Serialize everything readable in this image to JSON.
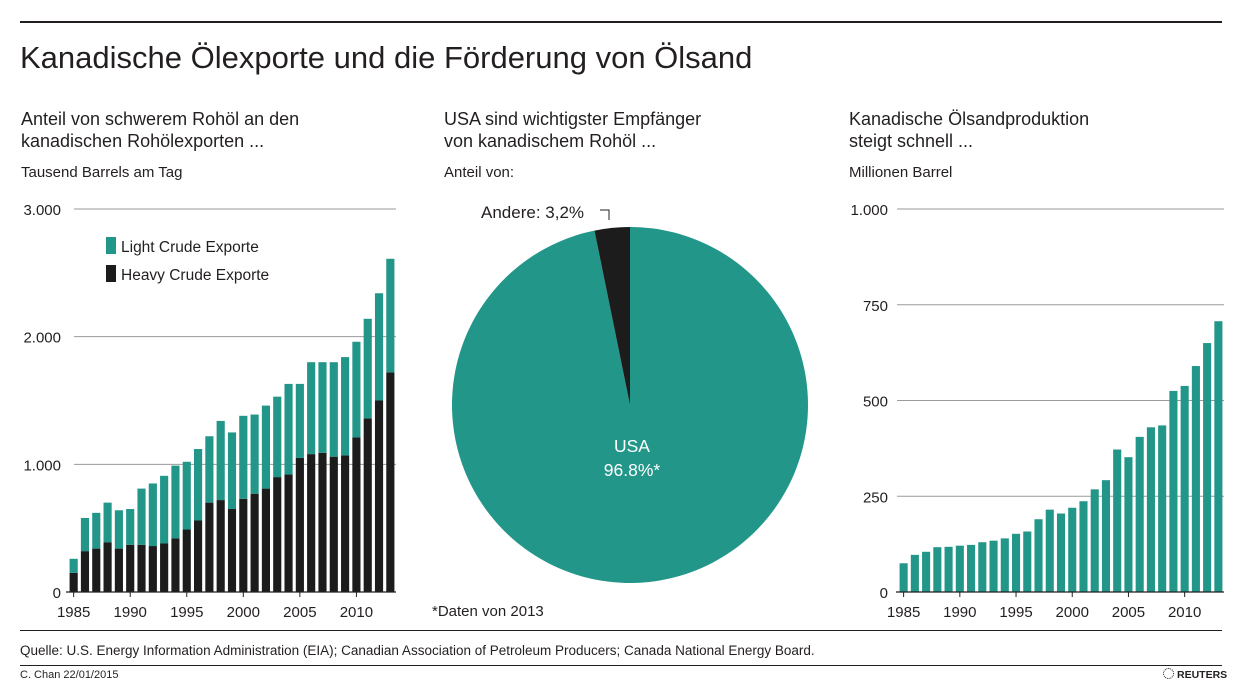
{
  "title": "Kanadische Ölexporte und die Förderung von Ölsand",
  "colors": {
    "teal": "#23968a",
    "dark": "#1c1c1c",
    "grid": "#9a9a9a",
    "text": "#231f20"
  },
  "panels": {
    "left": {
      "title_line1": "Anteil von schwerem Rohöl an den",
      "title_line2": "kanadischen Rohölexporten ...",
      "unit": "Tausend Barrels am Tag"
    },
    "middle": {
      "title_line1": "USA sind wichtigster Empfänger",
      "title_line2": "von kanadischem Rohöl ...",
      "unit": "Anteil von:",
      "note": "*Daten von 2013"
    },
    "right": {
      "title_line1": "Kanadische Ölsandproduktion",
      "title_line2": "steigt schnell ...",
      "unit": "Millionen Barrel"
    }
  },
  "chart_data": [
    {
      "type": "bar",
      "stacked": true,
      "title": "Anteil von schwerem Rohöl an den kanadischen Rohölexporten ...",
      "ylabel": "Tausend Barrels am Tag",
      "ylim": [
        0,
        3000
      ],
      "yticks": [
        0,
        1000,
        2000,
        3000
      ],
      "ytick_labels": [
        "0",
        "1.000",
        "2.000",
        "3.000"
      ],
      "xticks": [
        "1985",
        "1990",
        "1995",
        "2000",
        "2005",
        "2010"
      ],
      "x": [
        1985,
        1986,
        1987,
        1988,
        1989,
        1990,
        1991,
        1992,
        1993,
        1994,
        1995,
        1996,
        1997,
        1998,
        1999,
        2000,
        2001,
        2002,
        2003,
        2004,
        2005,
        2006,
        2007,
        2008,
        2009,
        2010,
        2011,
        2012,
        2013
      ],
      "series": [
        {
          "name": "Heavy Crude Exporte",
          "color": "#1c1c1c",
          "values": [
            150,
            320,
            340,
            390,
            340,
            370,
            370,
            360,
            380,
            420,
            490,
            560,
            700,
            720,
            650,
            730,
            770,
            810,
            900,
            920,
            1050,
            1080,
            1090,
            1060,
            1070,
            1210,
            1360,
            1500,
            1720
          ]
        },
        {
          "name": "Light Crude Exporte",
          "color": "#23968a",
          "values": [
            110,
            260,
            280,
            310,
            300,
            280,
            440,
            490,
            530,
            570,
            530,
            560,
            520,
            620,
            600,
            650,
            620,
            650,
            630,
            710,
            580,
            720,
            710,
            740,
            770,
            750,
            780,
            840,
            890
          ]
        }
      ],
      "legend": [
        "Light Crude Exporte",
        "Heavy Crude Exporte"
      ],
      "legend_position": "top-left"
    },
    {
      "type": "pie",
      "title": "USA sind wichtigster Empfänger von kanadischem Rohöl ...",
      "subtitle": "Anteil von:",
      "slices": [
        {
          "label": "USA",
          "value": 96.8,
          "value_label": "96.8%*",
          "color": "#23968a"
        },
        {
          "label": "Andere: 3,2%",
          "value": 3.2,
          "color": "#1c1c1c"
        }
      ],
      "note": "*Daten von 2013"
    },
    {
      "type": "bar",
      "title": "Kanadische Ölsandproduktion steigt schnell ...",
      "ylabel": "Millionen Barrel",
      "ylim": [
        0,
        1000
      ],
      "yticks": [
        0,
        250,
        500,
        750,
        1000
      ],
      "ytick_labels": [
        "0",
        "250",
        "500",
        "750",
        "1.000"
      ],
      "xticks": [
        "1985",
        "1990",
        "1995",
        "2000",
        "2005",
        "2010"
      ],
      "x": [
        1985,
        1986,
        1987,
        1988,
        1989,
        1990,
        1991,
        1992,
        1993,
        1994,
        1995,
        1996,
        1997,
        1998,
        1999,
        2000,
        2001,
        2002,
        2003,
        2004,
        2005,
        2006,
        2007,
        2008,
        2009,
        2010,
        2011,
        2012,
        2013
      ],
      "values": [
        75,
        97,
        105,
        117,
        118,
        121,
        123,
        130,
        134,
        140,
        152,
        158,
        190,
        215,
        205,
        220,
        237,
        268,
        292,
        372,
        352,
        405,
        430,
        435,
        525,
        538,
        590,
        650,
        707
      ],
      "color": "#23968a"
    }
  ],
  "source": "Quelle: U.S. Energy Information Administration (EIA); Canadian Association of Petroleum Producers; Canada National Energy Board.",
  "author": "C. Chan  22/01/2015",
  "brand": "REUTERS"
}
